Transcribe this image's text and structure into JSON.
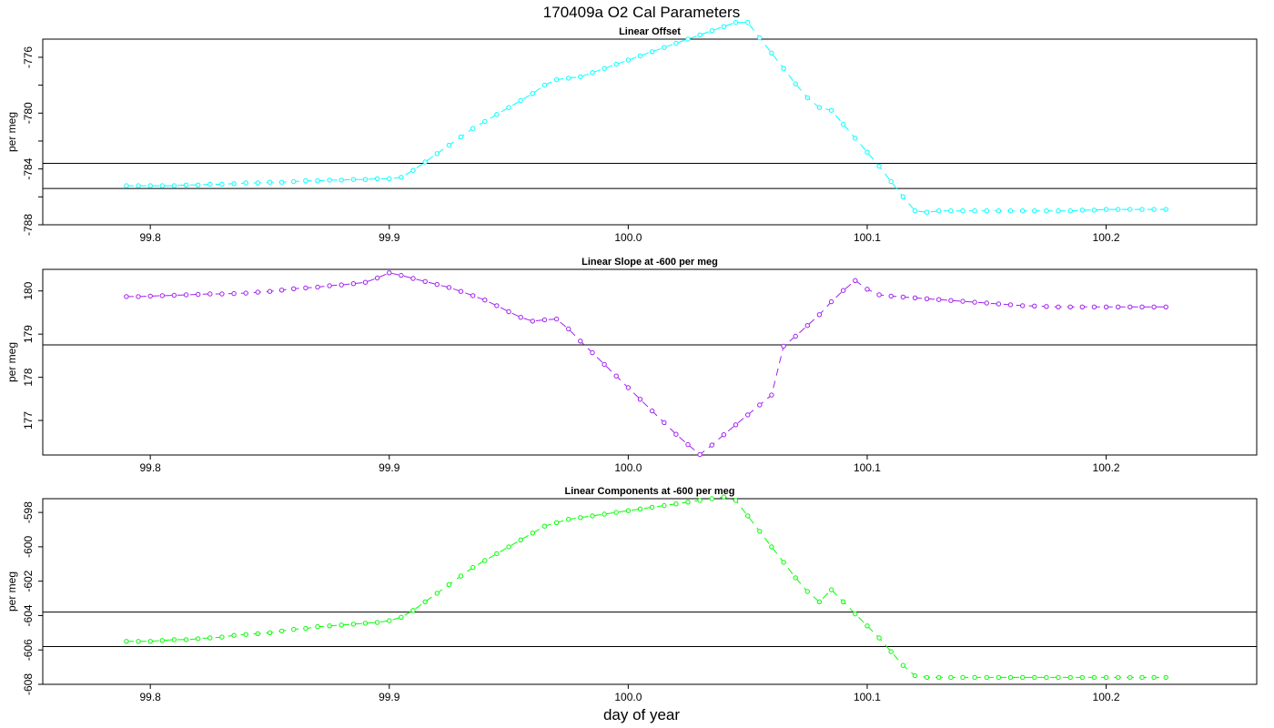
{
  "figure": {
    "title": "170409a   O2 Cal Parameters",
    "xlabel": "day of year"
  },
  "chart_data": [
    {
      "type": "line",
      "title": "Linear Offset",
      "ylabel": "per meg",
      "xlim": [
        99.755,
        100.263
      ],
      "ylim": [
        -788.0,
        -774.7
      ],
      "xticks": [
        99.8,
        99.9,
        100.0,
        100.1,
        100.2
      ],
      "xtick_labels": [
        "99.8",
        "99.9",
        "100.0",
        "100.1",
        "100.2"
      ],
      "yticks": [
        -788,
        -786,
        -784,
        -782,
        -780,
        -778,
        -776
      ],
      "ytick_labels": [
        "-788",
        "",
        "-784",
        "",
        "-780",
        "",
        "-776"
      ],
      "hlines": [
        -783.6,
        -785.4
      ],
      "series": [
        {
          "color": "#00ffff",
          "marker": "open-circle",
          "x": [
            99.79,
            99.795,
            99.8,
            99.805,
            99.81,
            99.815,
            99.82,
            99.825,
            99.83,
            99.835,
            99.84,
            99.845,
            99.85,
            99.855,
            99.86,
            99.865,
            99.87,
            99.875,
            99.88,
            99.885,
            99.89,
            99.895,
            99.9,
            99.905,
            99.91,
            99.915,
            99.92,
            99.925,
            99.93,
            99.935,
            99.94,
            99.945,
            99.95,
            99.955,
            99.96,
            99.965,
            99.97,
            99.975,
            99.98,
            99.985,
            99.99,
            99.995,
            100.0,
            100.005,
            100.01,
            100.015,
            100.02,
            100.025,
            100.03,
            100.035,
            100.04,
            100.045,
            100.05,
            100.055,
            100.06,
            100.065,
            100.07,
            100.075,
            100.08,
            100.085,
            100.09,
            100.095,
            100.1,
            100.105,
            100.11,
            100.115,
            100.12,
            100.125,
            100.13,
            100.135,
            100.14,
            100.145,
            100.15,
            100.155,
            100.16,
            100.165,
            100.17,
            100.175,
            100.18,
            100.185,
            100.19,
            100.195,
            100.2,
            100.205,
            100.21,
            100.215,
            100.22,
            100.225
          ],
          "y": [
            -785.2,
            -785.2,
            -785.2,
            -785.2,
            -785.2,
            -785.15,
            -785.15,
            -785.1,
            -785.1,
            -785.05,
            -785.0,
            -785.0,
            -784.95,
            -784.95,
            -784.9,
            -784.85,
            -784.85,
            -784.8,
            -784.8,
            -784.75,
            -784.75,
            -784.7,
            -784.7,
            -784.6,
            -784.1,
            -783.5,
            -782.9,
            -782.3,
            -781.7,
            -781.1,
            -780.6,
            -780.1,
            -779.6,
            -779.1,
            -778.6,
            -778.0,
            -777.6,
            -777.5,
            -777.4,
            -777.1,
            -776.8,
            -776.5,
            -776.2,
            -775.9,
            -775.6,
            -775.3,
            -775.0,
            -774.7,
            -774.4,
            -774.1,
            -773.8,
            -773.5,
            -773.5,
            -774.6,
            -775.7,
            -776.8,
            -777.9,
            -778.9,
            -779.6,
            -779.8,
            -780.8,
            -781.8,
            -782.8,
            -783.8,
            -784.9,
            -786.0,
            -787.0,
            -787.1,
            -787.0,
            -787.0,
            -787.0,
            -787.0,
            -787.0,
            -787.0,
            -787.0,
            -787.0,
            -787.0,
            -787.0,
            -787.0,
            -787.0,
            -786.95,
            -786.95,
            -786.9,
            -786.9,
            -786.9,
            -786.9,
            -786.9,
            -786.9
          ]
        }
      ]
    },
    {
      "type": "line",
      "title": "Linear Slope at -600 per meg",
      "ylabel": "per meg",
      "xlim": [
        99.755,
        100.263
      ],
      "ylim": [
        176.2,
        180.5
      ],
      "xticks": [
        99.8,
        99.9,
        100.0,
        100.1,
        100.2
      ],
      "xtick_labels": [
        "99.8",
        "99.9",
        "100.0",
        "100.1",
        "100.2"
      ],
      "yticks": [
        177,
        178,
        179,
        180
      ],
      "ytick_labels": [
        "177",
        "178",
        "179",
        "180"
      ],
      "hlines": [
        178.75
      ],
      "series": [
        {
          "color": "#a020f0",
          "marker": "open-circle",
          "x": [
            99.79,
            99.795,
            99.8,
            99.805,
            99.81,
            99.815,
            99.82,
            99.825,
            99.83,
            99.835,
            99.84,
            99.845,
            99.85,
            99.855,
            99.86,
            99.865,
            99.87,
            99.875,
            99.88,
            99.885,
            99.89,
            99.895,
            99.9,
            99.905,
            99.91,
            99.915,
            99.92,
            99.925,
            99.93,
            99.935,
            99.94,
            99.945,
            99.95,
            99.955,
            99.96,
            99.965,
            99.97,
            99.975,
            99.98,
            99.985,
            99.99,
            99.995,
            100.0,
            100.005,
            100.01,
            100.015,
            100.02,
            100.025,
            100.03,
            100.035,
            100.04,
            100.045,
            100.05,
            100.055,
            100.06,
            100.065,
            100.07,
            100.075,
            100.08,
            100.085,
            100.09,
            100.095,
            100.1,
            100.105,
            100.11,
            100.115,
            100.12,
            100.125,
            100.13,
            100.135,
            100.14,
            100.145,
            100.15,
            100.155,
            100.16,
            100.165,
            100.17,
            100.175,
            100.18,
            100.185,
            100.19,
            100.195,
            100.2,
            100.205,
            100.21,
            100.215,
            100.22,
            100.225
          ],
          "y": [
            179.87,
            179.87,
            179.88,
            179.89,
            179.9,
            179.91,
            179.92,
            179.93,
            179.93,
            179.94,
            179.95,
            179.97,
            179.99,
            180.02,
            180.05,
            180.07,
            180.09,
            180.12,
            180.14,
            180.17,
            180.2,
            180.3,
            180.42,
            180.36,
            180.29,
            180.22,
            180.15,
            180.08,
            179.99,
            179.89,
            179.79,
            179.66,
            179.52,
            179.39,
            179.3,
            179.33,
            179.35,
            179.12,
            178.84,
            178.57,
            178.3,
            178.03,
            177.76,
            177.49,
            177.22,
            176.95,
            176.68,
            176.44,
            176.21,
            176.43,
            176.67,
            176.9,
            177.13,
            177.36,
            177.59,
            178.72,
            178.95,
            179.2,
            179.45,
            179.75,
            180.01,
            180.24,
            180.04,
            179.91,
            179.88,
            179.86,
            179.84,
            179.82,
            179.8,
            179.78,
            179.76,
            179.74,
            179.72,
            179.7,
            179.68,
            179.66,
            179.65,
            179.64,
            179.63,
            179.63,
            179.63,
            179.63,
            179.63,
            179.63,
            179.63,
            179.63,
            179.63,
            179.63
          ]
        }
      ]
    },
    {
      "type": "line",
      "title": "Linear Components at -600 per meg",
      "ylabel": "per meg",
      "xlim": [
        99.755,
        100.263
      ],
      "ylim": [
        -608.0,
        -597.2
      ],
      "xticks": [
        99.8,
        99.9,
        100.0,
        100.1,
        100.2
      ],
      "xtick_labels": [
        "99.8",
        "99.9",
        "100.0",
        "100.1",
        "100.2"
      ],
      "yticks": [
        -608,
        -606,
        -604,
        -602,
        -600,
        -598
      ],
      "ytick_labels": [
        "-608",
        "-606",
        "-604",
        "-602",
        "-600",
        "-598"
      ],
      "hlines": [
        -603.8,
        -605.8
      ],
      "series": [
        {
          "color": "#00ff00",
          "marker": "open-circle",
          "x": [
            99.79,
            99.795,
            99.8,
            99.805,
            99.81,
            99.815,
            99.82,
            99.825,
            99.83,
            99.835,
            99.84,
            99.845,
            99.85,
            99.855,
            99.86,
            99.865,
            99.87,
            99.875,
            99.88,
            99.885,
            99.89,
            99.895,
            99.9,
            99.905,
            99.91,
            99.915,
            99.92,
            99.925,
            99.93,
            99.935,
            99.94,
            99.945,
            99.95,
            99.955,
            99.96,
            99.965,
            99.97,
            99.975,
            99.98,
            99.985,
            99.99,
            99.995,
            100.0,
            100.005,
            100.01,
            100.015,
            100.02,
            100.025,
            100.03,
            100.035,
            100.04,
            100.045,
            100.05,
            100.055,
            100.06,
            100.065,
            100.07,
            100.075,
            100.08,
            100.085,
            100.09,
            100.095,
            100.1,
            100.105,
            100.11,
            100.115,
            100.12,
            100.125,
            100.13,
            100.135,
            100.14,
            100.145,
            100.15,
            100.155,
            100.16,
            100.165,
            100.17,
            100.175,
            100.18,
            100.185,
            100.19,
            100.195,
            100.2,
            100.205,
            100.21,
            100.215,
            100.22,
            100.225
          ],
          "y": [
            -605.5,
            -605.5,
            -605.5,
            -605.45,
            -605.4,
            -605.4,
            -605.35,
            -605.3,
            -605.25,
            -605.15,
            -605.1,
            -605.05,
            -605.0,
            -604.9,
            -604.8,
            -604.75,
            -604.65,
            -604.6,
            -604.55,
            -604.5,
            -604.45,
            -604.4,
            -604.3,
            -604.1,
            -603.7,
            -603.2,
            -602.7,
            -602.2,
            -601.7,
            -601.2,
            -600.8,
            -600.4,
            -600.0,
            -599.6,
            -599.2,
            -598.8,
            -598.6,
            -598.4,
            -598.3,
            -598.2,
            -598.1,
            -598.0,
            -597.9,
            -597.8,
            -597.7,
            -597.6,
            -597.5,
            -597.4,
            -597.3,
            -597.2,
            -597.1,
            -597.3,
            -598.2,
            -599.1,
            -600.0,
            -600.9,
            -601.8,
            -602.6,
            -603.2,
            -602.5,
            -603.2,
            -603.9,
            -604.6,
            -605.3,
            -606.1,
            -606.9,
            -607.5,
            -607.6,
            -607.6,
            -607.6,
            -607.6,
            -607.6,
            -607.6,
            -607.6,
            -607.6,
            -607.6,
            -607.6,
            -607.6,
            -607.6,
            -607.6,
            -607.6,
            -607.6,
            -607.6,
            -607.6,
            -607.6,
            -607.6,
            -607.6,
            -607.6
          ]
        }
      ]
    }
  ]
}
